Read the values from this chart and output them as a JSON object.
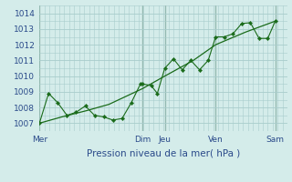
{
  "xlabel": "Pression niveau de la mer( hPa )",
  "background_color": "#d4ecea",
  "grid_color": "#a8cccc",
  "line_color": "#1a6b1a",
  "sep_color": "#2a5a2a",
  "ylim": [
    1006.5,
    1014.5
  ],
  "yticks": [
    1007,
    1008,
    1009,
    1010,
    1011,
    1012,
    1013,
    1014
  ],
  "tick_color": "#2a4a8a",
  "day_labels": [
    "Mer",
    "Dim",
    "Jeu",
    "Ven",
    "Sam"
  ],
  "day_positions": [
    0.0,
    0.415,
    0.505,
    0.71,
    0.95
  ],
  "smooth_x": [
    0.0,
    0.09,
    0.19,
    0.28,
    0.415,
    0.505,
    0.62,
    0.71,
    0.83,
    0.95
  ],
  "smooth_y": [
    1007.0,
    1007.4,
    1007.8,
    1008.2,
    1009.2,
    1010.0,
    1011.0,
    1012.0,
    1012.8,
    1013.5
  ],
  "detailed_x": [
    0.0,
    0.037,
    0.074,
    0.111,
    0.148,
    0.185,
    0.222,
    0.259,
    0.296,
    0.333,
    0.37,
    0.407,
    0.415,
    0.45,
    0.475,
    0.505,
    0.54,
    0.575,
    0.61,
    0.645,
    0.68,
    0.71,
    0.745,
    0.78,
    0.815,
    0.85,
    0.885,
    0.92,
    0.95
  ],
  "detailed_y": [
    1007.0,
    1008.9,
    1008.3,
    1007.5,
    1007.7,
    1008.1,
    1007.5,
    1007.4,
    1007.2,
    1007.3,
    1008.3,
    1009.5,
    1009.5,
    1009.4,
    1008.9,
    1010.5,
    1011.1,
    1010.4,
    1011.0,
    1010.4,
    1011.0,
    1012.5,
    1012.5,
    1012.7,
    1013.35,
    1013.4,
    1012.4,
    1012.4,
    1013.5
  ]
}
